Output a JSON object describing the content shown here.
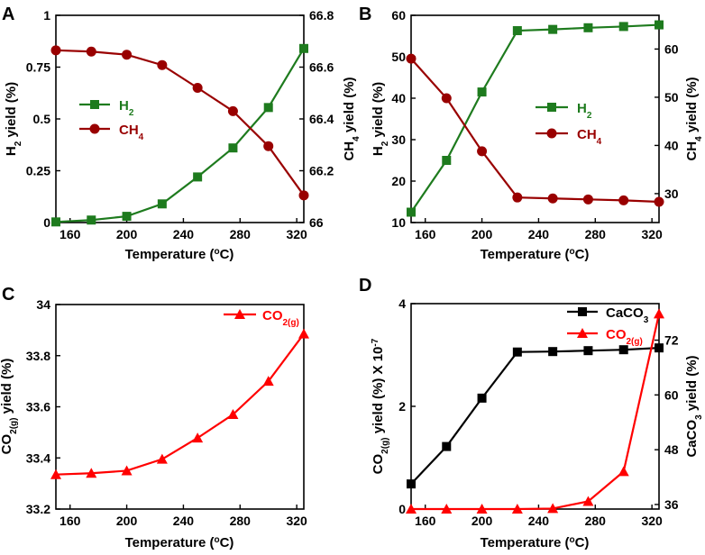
{
  "colors": {
    "h2": "#1e7b1e",
    "ch4": "#990000",
    "co2": "#ff0000",
    "caco3": "#000000",
    "axis": "#000000"
  },
  "chart_data": [
    {
      "id": "A",
      "panel_label": "A",
      "type": "line",
      "xlabel": "Temperature (oC)",
      "xlim": [
        150,
        325
      ],
      "xticks": [
        160,
        200,
        240,
        280,
        320
      ],
      "ylabel_left": "H2 yield (%)",
      "ylim_left": [
        0,
        1
      ],
      "yticks_left": [
        "0",
        "0.25",
        "0.5",
        "0.75",
        "1"
      ],
      "ylabel_right": "CH4 yield (%)",
      "ylim_right": [
        66,
        66.8
      ],
      "yticks_right": [
        "66",
        "66.2",
        "66.4",
        "66.6",
        "66.8"
      ],
      "legend_position": "middle-left",
      "series": [
        {
          "name": "H2",
          "axis": "left",
          "marker": "square",
          "color": "#1e7b1e",
          "x": [
            150,
            175,
            200,
            225,
            250,
            275,
            300,
            325
          ],
          "y": [
            0.003,
            0.012,
            0.03,
            0.09,
            0.22,
            0.36,
            0.555,
            0.84
          ]
        },
        {
          "name": "CH4",
          "axis": "right",
          "marker": "circle",
          "color": "#990000",
          "x": [
            150,
            175,
            200,
            225,
            250,
            275,
            300,
            325
          ],
          "y": [
            66.665,
            66.66,
            66.648,
            66.608,
            66.52,
            66.43,
            66.295,
            66.105
          ]
        }
      ]
    },
    {
      "id": "B",
      "panel_label": "B",
      "type": "line",
      "xlabel": "Temperature (oC)",
      "xlim": [
        150,
        325
      ],
      "xticks": [
        160,
        200,
        240,
        280,
        320
      ],
      "ylabel_left": "H2 yield (%)",
      "ylim_left": [
        10,
        60
      ],
      "yticks_left": [
        "10",
        "20",
        "30",
        "40",
        "50",
        "60"
      ],
      "ylabel_right": "CH4 yield (%)",
      "ylim_right": [
        24,
        67
      ],
      "yticks_right": [
        "30",
        "40",
        "50",
        "60"
      ],
      "legend_position": "middle-right",
      "series": [
        {
          "name": "H2",
          "axis": "left",
          "marker": "square",
          "color": "#1e7b1e",
          "x": [
            150,
            175,
            200,
            225,
            250,
            275,
            300,
            325
          ],
          "y": [
            12.5,
            25,
            41.5,
            56.3,
            56.6,
            57,
            57.3,
            57.7
          ]
        },
        {
          "name": "CH4",
          "axis": "right",
          "marker": "circle",
          "color": "#990000",
          "x": [
            150,
            175,
            200,
            225,
            250,
            275,
            300,
            325
          ],
          "y": [
            58,
            49.8,
            38.8,
            29.2,
            29.0,
            28.8,
            28.6,
            28.3
          ]
        }
      ]
    },
    {
      "id": "C",
      "panel_label": "C",
      "type": "line",
      "xlabel": "Temperature (oC)",
      "xlim": [
        150,
        325
      ],
      "xticks": [
        160,
        200,
        240,
        280,
        320
      ],
      "ylabel_left": "CO2(g) yield (%)",
      "ylim_left": [
        33.2,
        34
      ],
      "yticks_left": [
        "33.2",
        "33.4",
        "33.6",
        "33.8",
        "34"
      ],
      "legend_position": "top-right",
      "series": [
        {
          "name": "CO2(g)",
          "axis": "left",
          "marker": "triangle",
          "color": "#ff0000",
          "x": [
            150,
            175,
            200,
            225,
            250,
            275,
            300,
            325
          ],
          "y": [
            33.335,
            33.34,
            33.35,
            33.395,
            33.478,
            33.57,
            33.7,
            33.885
          ]
        }
      ]
    },
    {
      "id": "D",
      "panel_label": "D",
      "type": "line",
      "xlabel": "Temperature (oC)",
      "xlim": [
        150,
        325
      ],
      "xticks": [
        160,
        200,
        240,
        280,
        320
      ],
      "ylabel_left": "CO2(g) yield (%) X 10-7",
      "ylim_left": [
        0,
        4
      ],
      "yticks_left": [
        "0",
        "2",
        "4"
      ],
      "ylabel_right": "CaCO3 yield (%)",
      "ylim_right": [
        35,
        80
      ],
      "yticks_right": [
        "36",
        "48",
        "60",
        "72"
      ],
      "legend_position": "top-right",
      "series": [
        {
          "name": "CaCO3",
          "axis": "right",
          "marker": "square",
          "color": "#000000",
          "x": [
            150,
            175,
            200,
            225,
            250,
            275,
            300,
            325
          ],
          "y": [
            40.5,
            48.7,
            59.3,
            69.4,
            69.5,
            69.7,
            69.9,
            70.3
          ]
        },
        {
          "name": "CO2(g)",
          "axis": "left",
          "marker": "triangle",
          "color": "#ff0000",
          "x": [
            150,
            175,
            200,
            225,
            250,
            275,
            300,
            325
          ],
          "y": [
            0,
            0,
            0,
            0,
            0.01,
            0.15,
            0.73,
            3.8
          ]
        }
      ]
    }
  ]
}
